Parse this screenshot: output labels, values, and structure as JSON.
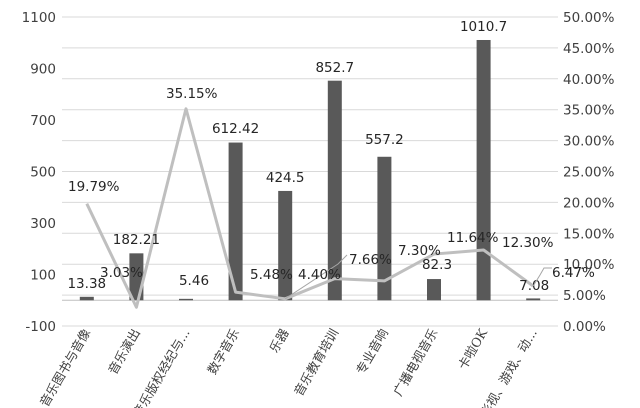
{
  "chart_data": {
    "type": "bar",
    "categories": [
      "音乐图书与音像",
      "音乐演出",
      "音乐版权经纪与...",
      "数字音乐",
      "乐器",
      "音乐教育培训",
      "专业音响",
      "广播电视音乐",
      "卡啦OK",
      "影视、游戏、动..."
    ],
    "series": [
      {
        "type": "bar",
        "axis": "left",
        "color": "#595959",
        "values": [
          13.38,
          182.21,
          5.46,
          612.42,
          424.5,
          852.7,
          557.2,
          82.3,
          1010.7,
          7.08
        ],
        "labels": [
          "13.38",
          "182.21",
          "5.46",
          "612.42",
          "424.5",
          "852.7",
          "557.2",
          "82.3",
          "1010.7",
          "7.08"
        ]
      },
      {
        "type": "line",
        "axis": "right",
        "color": "#bfbfbf",
        "values": [
          19.79,
          3.03,
          35.15,
          5.48,
          4.4,
          7.66,
          7.3,
          11.64,
          12.3,
          6.47
        ],
        "labels": [
          "19.79%",
          "3.03%",
          "35.15%",
          "5.48%",
          "4.40%",
          "7.66%",
          "7.30%",
          "11.64%",
          "12.30%",
          "6.47%"
        ]
      }
    ],
    "y_left": {
      "ylim": [
        -100,
        1100
      ],
      "ticks": [
        "-100",
        "100",
        "300",
        "500",
        "700",
        "900",
        "1100"
      ]
    },
    "y_right": {
      "ylim": [
        0,
        50
      ],
      "ticks": [
        "0.00%",
        "5.00%",
        "10.00%",
        "15.00%",
        "20.00%",
        "25.00%",
        "30.00%",
        "35.00%",
        "40.00%",
        "45.00%",
        "50.00%"
      ]
    },
    "grid": "horizontal",
    "legend": "none"
  }
}
